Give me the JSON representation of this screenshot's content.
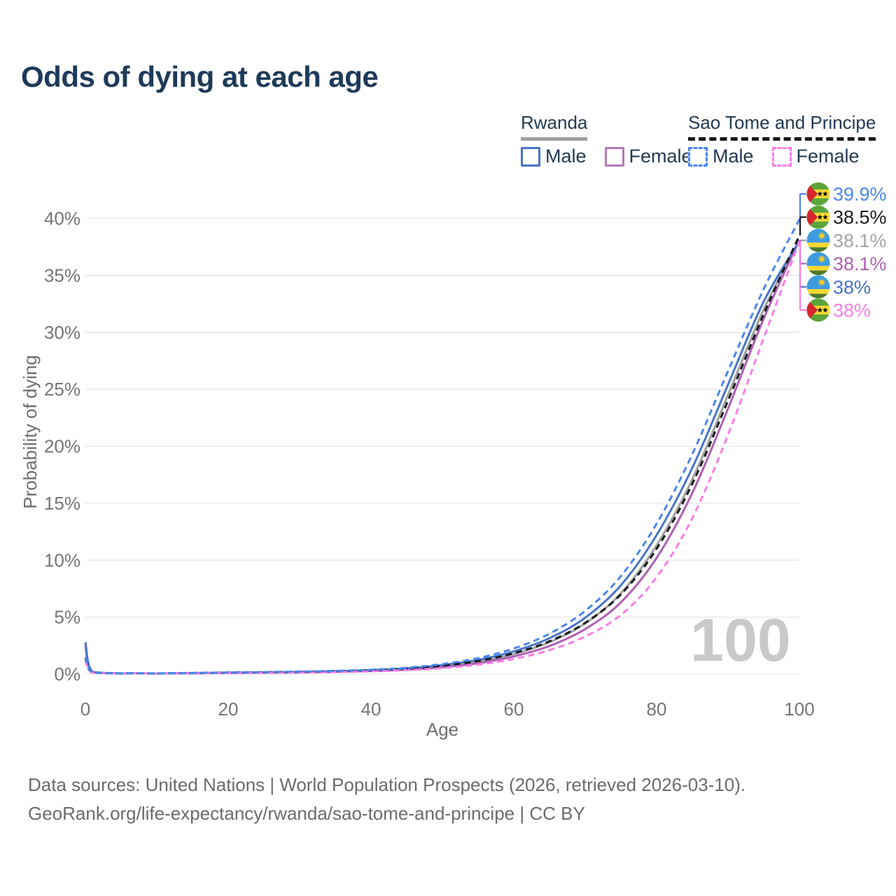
{
  "title": "Odds of dying at each age",
  "legend": {
    "groups": [
      {
        "country": "Rwanda",
        "items": [
          {
            "label": "Male"
          },
          {
            "label": "Female"
          }
        ]
      },
      {
        "country": "Sao Tome and Principe",
        "items": [
          {
            "label": "Male"
          },
          {
            "label": "Female"
          }
        ]
      }
    ]
  },
  "footer": {
    "line1": "Data sources: United Nations | World Population Prospects (2026, retrieved 2026-03-10).",
    "line2": "GeoRank.org/life-expectancy/rwanda/sao-tome-and-principe | CC BY"
  },
  "chart_data": {
    "type": "line",
    "title": "Odds of dying at each age",
    "xlabel": "Age",
    "ylabel": "Probability of dying",
    "xlim": [
      0,
      100
    ],
    "ylim": [
      0,
      40
    ],
    "grid": "horizontal",
    "legend_position": "top-right",
    "watermark": "100",
    "x_ticks": [
      0,
      20,
      40,
      60,
      80,
      100
    ],
    "y_tick_labels": [
      "0%",
      "5%",
      "10%",
      "15%",
      "20%",
      "25%",
      "30%",
      "35%",
      "40%"
    ],
    "x": [
      0,
      1,
      5,
      10,
      15,
      20,
      25,
      30,
      35,
      40,
      45,
      50,
      55,
      60,
      65,
      70,
      75,
      80,
      85,
      90,
      95,
      100
    ],
    "series": [
      {
        "key": "sao_tome_male",
        "name": "Sao Tome and Principe Male",
        "color": "#4a86ee",
        "dash": true,
        "values": [
          1.5,
          0.15,
          0.06,
          0.06,
          0.1,
          0.15,
          0.18,
          0.22,
          0.28,
          0.38,
          0.56,
          0.88,
          1.4,
          2.25,
          3.55,
          5.55,
          8.6,
          13.2,
          19.3,
          26.6,
          33.8,
          39.9
        ]
      },
      {
        "key": "sao_tome_overall",
        "name": "Sao Tome and Principe",
        "color": "#17191c",
        "dash": true,
        "values": [
          1.35,
          0.13,
          0.055,
          0.055,
          0.09,
          0.13,
          0.16,
          0.19,
          0.24,
          0.33,
          0.48,
          0.73,
          1.15,
          1.83,
          2.88,
          4.5,
          7.0,
          11.0,
          16.7,
          24.0,
          31.6,
          38.5
        ]
      },
      {
        "key": "rwanda_overall",
        "name": "Rwanda",
        "color": "#9e9e9e",
        "dash": false,
        "values": [
          2.6,
          0.19,
          0.065,
          0.055,
          0.08,
          0.11,
          0.14,
          0.18,
          0.23,
          0.31,
          0.45,
          0.69,
          1.09,
          1.76,
          2.8,
          4.45,
          7.1,
          11.3,
          17.1,
          24.5,
          32.0,
          38.1
        ]
      },
      {
        "key": "rwanda_female",
        "name": "Rwanda Female",
        "color": "#af60b4",
        "dash": false,
        "values": [
          2.4,
          0.18,
          0.06,
          0.05,
          0.07,
          0.1,
          0.12,
          0.15,
          0.2,
          0.27,
          0.39,
          0.6,
          0.95,
          1.55,
          2.47,
          3.95,
          6.3,
          10.2,
          15.9,
          23.3,
          31.2,
          38.1
        ]
      },
      {
        "key": "rwanda_male",
        "name": "Rwanda Male",
        "color": "#4674c8",
        "dash": false,
        "values": [
          2.8,
          0.2,
          0.07,
          0.06,
          0.09,
          0.13,
          0.16,
          0.2,
          0.26,
          0.35,
          0.51,
          0.79,
          1.25,
          2.0,
          3.15,
          4.95,
          7.8,
          12.2,
          18.1,
          25.4,
          32.7,
          38.0
        ]
      },
      {
        "key": "sao_tome_female",
        "name": "Sao Tome and Principe Female",
        "color": "#fb7ce8",
        "dash": true,
        "values": [
          1.2,
          0.12,
          0.05,
          0.05,
          0.07,
          0.09,
          0.11,
          0.14,
          0.18,
          0.24,
          0.35,
          0.53,
          0.83,
          1.33,
          2.1,
          3.3,
          5.2,
          8.5,
          13.7,
          21.0,
          29.5,
          38.0
        ]
      }
    ],
    "end_labels": [
      {
        "series": "sao_tome_male",
        "flag": "sao-tome-and-principe",
        "text": "39.9%",
        "color": "#4a86ee"
      },
      {
        "series": "sao_tome_overall",
        "flag": "sao-tome-and-principe",
        "text": "38.5%",
        "color": "#1a1a1a"
      },
      {
        "series": "rwanda_overall",
        "flag": "rwanda",
        "text": "38.1%",
        "color": "#a3a3a3"
      },
      {
        "series": "rwanda_female",
        "flag": "rwanda",
        "text": "38.1%",
        "color": "#af60b4"
      },
      {
        "series": "rwanda_male",
        "flag": "rwanda",
        "text": "38%",
        "color": "#4674c8"
      },
      {
        "series": "sao_tome_female",
        "flag": "sao-tome-and-principe",
        "text": "38%",
        "color": "#fb7ce8"
      }
    ]
  }
}
